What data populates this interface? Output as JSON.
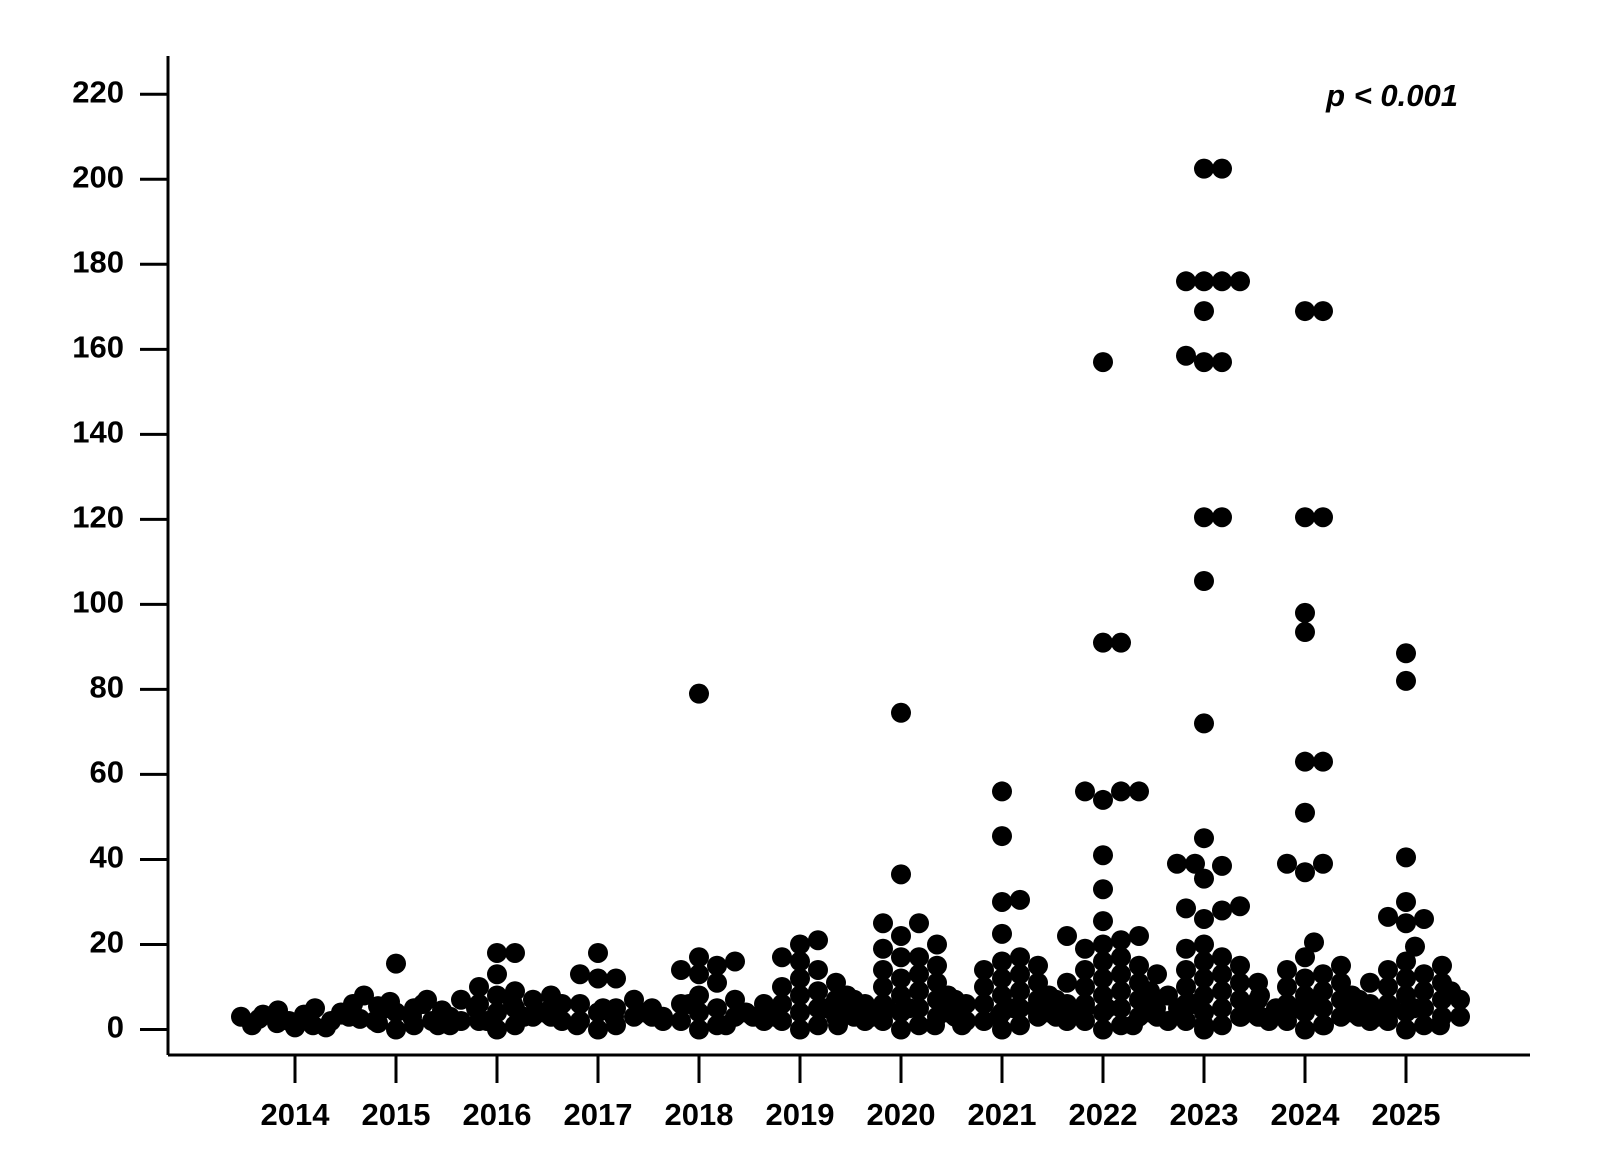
{
  "chart_data": {
    "type": "dotplot",
    "annotation": "p < 0.001",
    "categories": [
      "2014",
      "2015",
      "2016",
      "2017",
      "2018",
      "2019",
      "2020",
      "2021",
      "2022",
      "2023",
      "2024",
      "2025"
    ],
    "color": "#000000",
    "ylim": [
      -6,
      229
    ],
    "yticks": [
      0,
      20,
      40,
      60,
      80,
      100,
      120,
      140,
      160,
      180,
      200,
      220
    ],
    "values": [
      [
        0.5,
        1,
        1.5,
        2,
        2.5,
        3,
        3,
        3.5,
        4,
        4.5,
        5,
        1,
        2,
        0.5,
        3.5
      ],
      [
        0,
        1,
        1.5,
        2,
        2.5,
        3,
        3.5,
        4,
        4.5,
        5,
        5.5,
        6,
        6.5,
        7,
        8,
        15.5,
        1,
        2,
        3,
        4,
        5,
        6
      ],
      [
        0,
        1,
        2,
        3,
        4,
        5,
        6,
        7,
        8,
        9,
        10,
        13,
        18,
        18,
        2,
        3,
        4,
        5,
        6,
        1,
        2,
        3,
        7,
        8
      ],
      [
        0,
        1,
        2,
        3,
        4,
        5,
        6,
        7,
        12,
        12,
        13,
        18,
        2,
        3,
        4,
        5,
        6,
        1,
        3,
        5
      ],
      [
        0,
        1,
        2,
        3,
        4,
        5,
        6,
        7,
        8,
        11,
        13,
        14,
        15,
        16,
        17,
        79,
        2,
        3,
        4,
        5,
        6,
        1,
        3
      ],
      [
        0,
        1,
        2,
        3,
        4,
        5,
        6,
        7,
        8,
        9,
        10,
        11,
        12,
        14,
        16,
        17,
        20,
        21,
        2,
        3,
        4,
        5,
        6,
        7,
        1,
        3
      ],
      [
        0,
        1,
        2,
        3,
        4,
        5,
        6,
        7,
        8,
        9,
        10,
        11,
        12,
        13,
        14,
        15,
        17,
        17,
        19,
        20,
        22,
        25,
        25,
        36.5,
        74.5,
        2,
        3,
        4,
        5,
        6,
        7,
        8,
        1,
        3,
        5
      ],
      [
        0,
        1,
        2,
        3,
        4,
        5,
        6,
        7,
        8,
        9,
        10,
        11,
        12,
        13,
        14,
        15,
        16,
        17,
        22.5,
        30,
        30.5,
        45.5,
        56,
        2,
        3,
        4,
        5,
        6,
        7,
        8,
        1,
        3,
        5
      ],
      [
        0,
        1,
        2,
        3,
        4,
        5,
        6,
        7,
        8,
        9,
        10,
        11,
        12,
        13,
        14,
        15,
        16,
        17,
        19,
        20,
        21,
        22,
        22,
        25.5,
        33,
        41,
        54,
        56,
        56,
        56,
        91,
        91,
        157,
        2,
        3,
        4,
        5,
        6,
        7,
        8,
        1,
        3,
        5,
        9,
        11,
        13
      ],
      [
        0,
        1,
        2,
        3,
        4,
        5,
        6,
        7,
        8,
        9,
        10,
        11,
        12,
        13,
        14,
        15,
        16,
        17,
        19,
        20,
        26,
        28,
        28.5,
        29,
        35.5,
        38.5,
        39,
        39,
        45,
        72,
        105.5,
        120.5,
        120.5,
        157,
        157,
        158.5,
        169,
        176,
        176,
        176,
        176,
        202.5,
        202.5,
        2,
        3,
        4,
        5,
        6,
        7,
        8,
        1,
        3,
        5,
        9,
        11
      ],
      [
        0,
        1,
        2,
        3,
        4,
        5,
        6,
        7,
        8,
        9,
        10,
        11,
        12,
        13,
        14,
        15,
        17,
        20.5,
        37,
        39,
        39,
        51,
        63,
        63,
        93.5,
        98,
        120.5,
        120.5,
        169,
        169,
        2,
        3,
        4,
        5,
        6,
        7,
        8,
        1,
        3,
        5
      ],
      [
        0,
        1,
        2,
        3,
        4,
        5,
        6,
        7,
        8,
        9,
        10,
        11,
        12,
        13,
        14,
        15,
        16,
        19.5,
        25,
        26,
        26.5,
        30,
        40.5,
        82,
        88.5,
        2,
        3,
        4,
        5,
        6,
        7,
        8,
        1,
        3,
        5,
        9,
        11
      ]
    ]
  }
}
